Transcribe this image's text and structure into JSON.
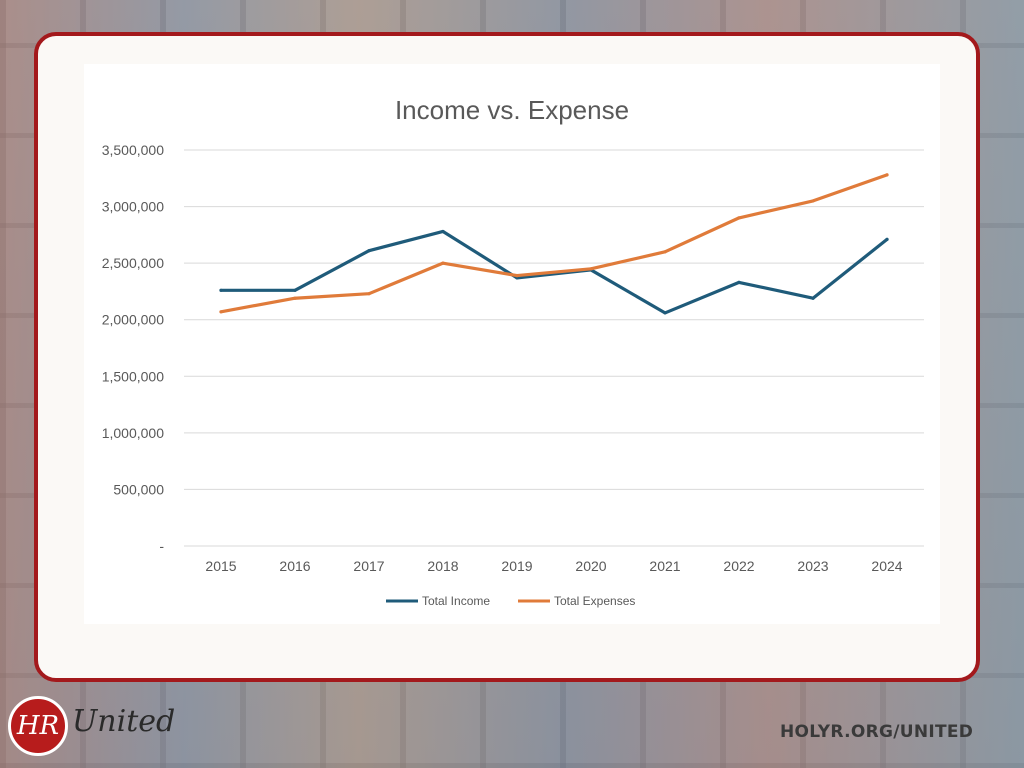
{
  "branding": {
    "logo_monogram": "HR",
    "logo_word": "United",
    "url": "HOLYR.ORG/UNITED"
  },
  "colors": {
    "frame_border": "#a3191c",
    "series_income": "#1f5b7a",
    "series_expenses": "#e07b3a",
    "grid": "#d9d9d9",
    "axis_text": "#595959"
  },
  "chart_data": {
    "type": "line",
    "title": "Income vs. Expense",
    "xlabel": "",
    "ylabel": "",
    "categories": [
      "2015",
      "2016",
      "2017",
      "2018",
      "2019",
      "2020",
      "2021",
      "2022",
      "2023",
      "2024"
    ],
    "series": [
      {
        "name": "Total Income",
        "color": "#1f5b7a",
        "values": [
          2260000,
          2260000,
          2610000,
          2780000,
          2370000,
          2440000,
          2060000,
          2330000,
          2190000,
          2710000
        ]
      },
      {
        "name": "Total Expenses",
        "color": "#e07b3a",
        "values": [
          2070000,
          2190000,
          2230000,
          2500000,
          2390000,
          2450000,
          2600000,
          2900000,
          3050000,
          3280000
        ]
      }
    ],
    "ylim": [
      0,
      3500000
    ],
    "yticks": [
      0,
      500000,
      1000000,
      1500000,
      2000000,
      2500000,
      3000000,
      3500000
    ],
    "ytick_labels": [
      "-",
      "500,000",
      "1,000,000",
      "1,500,000",
      "2,000,000",
      "2,500,000",
      "3,000,000",
      "3,500,000"
    ],
    "grid": true,
    "legend_position": "bottom"
  }
}
